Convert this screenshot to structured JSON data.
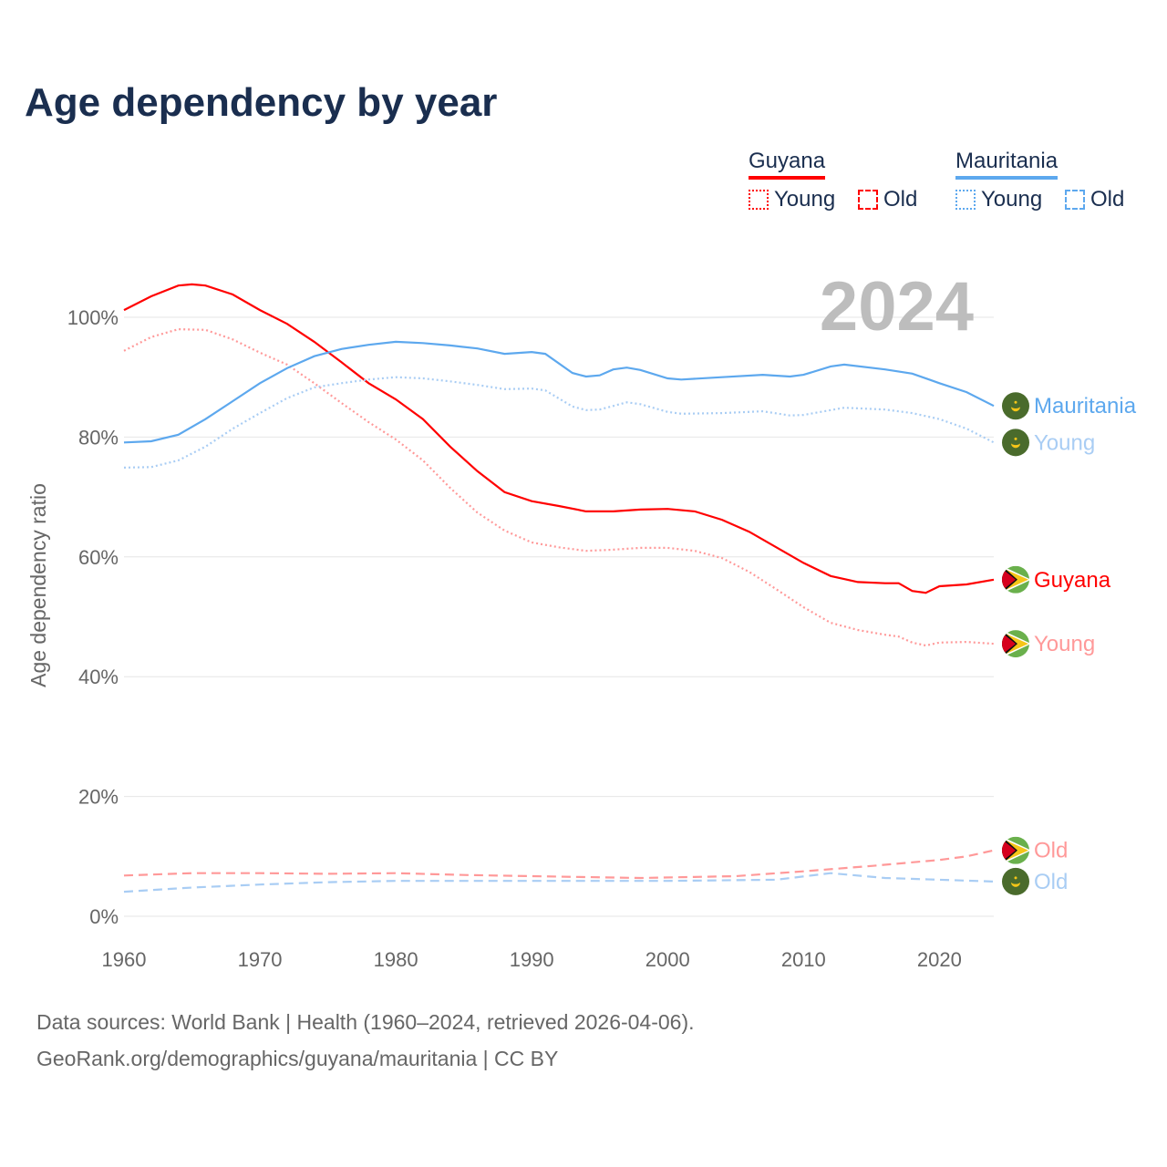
{
  "title": "Age dependency by year",
  "legend": {
    "countries": [
      {
        "name": "Guyana",
        "color": "#ff0000",
        "young_label": "Young",
        "old_label": "Old"
      },
      {
        "name": "Mauritania",
        "color": "#5da8ee",
        "young_label": "Young",
        "old_label": "Old"
      }
    ]
  },
  "year_overlay": "2024",
  "footer": {
    "line1": "Data sources: World Bank | Health (1960–2024, retrieved 2026-04-06).",
    "line2": "GeoRank.org/demographics/guyana/mauritania | CC BY"
  },
  "chart_data": {
    "type": "line",
    "title": "Age dependency by year",
    "xlabel": "",
    "ylabel": "Age dependency ratio",
    "xlim": [
      1960,
      2024
    ],
    "ylim": [
      0,
      110
    ],
    "x_ticks": [
      "1960",
      "1970",
      "1980",
      "1990",
      "2000",
      "2010",
      "2020"
    ],
    "y_ticks": [
      "0%",
      "20%",
      "40%",
      "60%",
      "80%",
      "100%"
    ],
    "grid": true,
    "legend_position": "top-right",
    "series": [
      {
        "name": "Guyana",
        "end_label": "Guyana",
        "country": "guyana",
        "style": "solid",
        "color": "#ff0000",
        "points": [
          [
            1960,
            101.2
          ],
          [
            1962,
            103.5
          ],
          [
            1964,
            105.3
          ],
          [
            1965,
            105.5
          ],
          [
            1966,
            105.3
          ],
          [
            1968,
            103.8
          ],
          [
            1970,
            101.2
          ],
          [
            1972,
            98.9
          ],
          [
            1974,
            95.9
          ],
          [
            1976,
            92.5
          ],
          [
            1978,
            89
          ],
          [
            1980,
            86.3
          ],
          [
            1982,
            83
          ],
          [
            1984,
            78.4
          ],
          [
            1986,
            74.3
          ],
          [
            1988,
            70.8
          ],
          [
            1990,
            69.3
          ],
          [
            1992,
            68.5
          ],
          [
            1994,
            67.6
          ],
          [
            1996,
            67.6
          ],
          [
            1998,
            67.9
          ],
          [
            2000,
            68
          ],
          [
            2002,
            67.6
          ],
          [
            2004,
            66.2
          ],
          [
            2006,
            64.2
          ],
          [
            2008,
            61.6
          ],
          [
            2010,
            59
          ],
          [
            2012,
            56.8
          ],
          [
            2014,
            55.8
          ],
          [
            2016,
            55.6
          ],
          [
            2017,
            55.6
          ],
          [
            2018,
            54.3
          ],
          [
            2019,
            54
          ],
          [
            2020,
            55.1
          ],
          [
            2022,
            55.4
          ],
          [
            2024,
            56.2
          ]
        ]
      },
      {
        "name": "Guyana Young",
        "end_label": "Young",
        "country": "guyana",
        "style": "dotted",
        "color": "#ff9999",
        "points": [
          [
            1960,
            94.4
          ],
          [
            1962,
            96.7
          ],
          [
            1964,
            98
          ],
          [
            1966,
            97.9
          ],
          [
            1968,
            96.3
          ],
          [
            1970,
            94.1
          ],
          [
            1972,
            92.1
          ],
          [
            1974,
            89
          ],
          [
            1976,
            85.7
          ],
          [
            1978,
            82.5
          ],
          [
            1980,
            79.6
          ],
          [
            1982,
            76.1
          ],
          [
            1984,
            71.5
          ],
          [
            1986,
            67.4
          ],
          [
            1988,
            64.4
          ],
          [
            1990,
            62.4
          ],
          [
            1992,
            61.6
          ],
          [
            1994,
            61
          ],
          [
            1996,
            61.2
          ],
          [
            1998,
            61.5
          ],
          [
            2000,
            61.5
          ],
          [
            2002,
            61
          ],
          [
            2004,
            59.8
          ],
          [
            2006,
            57.5
          ],
          [
            2008,
            54.6
          ],
          [
            2010,
            51.6
          ],
          [
            2012,
            49
          ],
          [
            2014,
            47.8
          ],
          [
            2016,
            47
          ],
          [
            2017,
            46.7
          ],
          [
            2018,
            45.7
          ],
          [
            2019,
            45.2
          ],
          [
            2020,
            45.7
          ],
          [
            2022,
            45.8
          ],
          [
            2024,
            45.5
          ]
        ]
      },
      {
        "name": "Guyana Old",
        "end_label": "Old",
        "country": "guyana",
        "style": "dashed",
        "color": "#ff9999",
        "points": [
          [
            1960,
            6.8
          ],
          [
            1965,
            7.2
          ],
          [
            1970,
            7.2
          ],
          [
            1975,
            7.1
          ],
          [
            1980,
            7.2
          ],
          [
            1985,
            6.9
          ],
          [
            1990,
            6.7
          ],
          [
            1998,
            6.4
          ],
          [
            2005,
            6.7
          ],
          [
            2010,
            7.5
          ],
          [
            2015,
            8.4
          ],
          [
            2020,
            9.4
          ],
          [
            2022,
            10
          ],
          [
            2024,
            11
          ]
        ]
      },
      {
        "name": "Mauritania",
        "end_label": "Mauritania",
        "country": "mauritania",
        "style": "solid",
        "color": "#5da8ee",
        "points": [
          [
            1960,
            79.1
          ],
          [
            1962,
            79.3
          ],
          [
            1964,
            80.4
          ],
          [
            1966,
            83
          ],
          [
            1968,
            86
          ],
          [
            1970,
            89
          ],
          [
            1972,
            91.5
          ],
          [
            1974,
            93.5
          ],
          [
            1976,
            94.7
          ],
          [
            1978,
            95.4
          ],
          [
            1980,
            95.9
          ],
          [
            1982,
            95.7
          ],
          [
            1984,
            95.3
          ],
          [
            1986,
            94.8
          ],
          [
            1988,
            93.9
          ],
          [
            1990,
            94.2
          ],
          [
            1991,
            93.9
          ],
          [
            1993,
            90.7
          ],
          [
            1994,
            90.1
          ],
          [
            1995,
            90.3
          ],
          [
            1996,
            91.3
          ],
          [
            1997,
            91.6
          ],
          [
            1998,
            91.2
          ],
          [
            2000,
            89.8
          ],
          [
            2001,
            89.6
          ],
          [
            2004,
            90
          ],
          [
            2007,
            90.4
          ],
          [
            2009,
            90.1
          ],
          [
            2010,
            90.4
          ],
          [
            2012,
            91.8
          ],
          [
            2013,
            92.1
          ],
          [
            2016,
            91.3
          ],
          [
            2018,
            90.6
          ],
          [
            2020,
            89
          ],
          [
            2022,
            87.5
          ],
          [
            2024,
            85.2
          ]
        ]
      },
      {
        "name": "Mauritania Young",
        "end_label": "Young",
        "country": "mauritania",
        "style": "dotted",
        "color": "#a9cdf4",
        "points": [
          [
            1960,
            74.9
          ],
          [
            1962,
            75
          ],
          [
            1964,
            76.1
          ],
          [
            1966,
            78.4
          ],
          [
            1968,
            81.4
          ],
          [
            1970,
            84
          ],
          [
            1972,
            86.5
          ],
          [
            1974,
            88.3
          ],
          [
            1976,
            89
          ],
          [
            1978,
            89.6
          ],
          [
            1980,
            90
          ],
          [
            1982,
            89.8
          ],
          [
            1984,
            89.3
          ],
          [
            1986,
            88.7
          ],
          [
            1988,
            88
          ],
          [
            1990,
            88.1
          ],
          [
            1991,
            87.8
          ],
          [
            1993,
            85.1
          ],
          [
            1994,
            84.5
          ],
          [
            1995,
            84.6
          ],
          [
            1997,
            85.8
          ],
          [
            1998,
            85.5
          ],
          [
            2000,
            84.2
          ],
          [
            2001,
            83.9
          ],
          [
            2004,
            84
          ],
          [
            2007,
            84.3
          ],
          [
            2009,
            83.6
          ],
          [
            2010,
            83.7
          ],
          [
            2013,
            84.9
          ],
          [
            2016,
            84.6
          ],
          [
            2018,
            84
          ],
          [
            2020,
            83
          ],
          [
            2022,
            81.4
          ],
          [
            2024,
            79.1
          ]
        ]
      },
      {
        "name": "Mauritania Old",
        "end_label": "Old",
        "country": "mauritania",
        "style": "dashed",
        "color": "#a9cdf4",
        "points": [
          [
            1960,
            4.1
          ],
          [
            1965,
            4.8
          ],
          [
            1970,
            5.3
          ],
          [
            1975,
            5.7
          ],
          [
            1980,
            5.9
          ],
          [
            1990,
            5.9
          ],
          [
            2000,
            5.9
          ],
          [
            2008,
            6.1
          ],
          [
            2012,
            7.2
          ],
          [
            2016,
            6.4
          ],
          [
            2020,
            6.1
          ],
          [
            2024,
            5.8
          ]
        ]
      }
    ]
  }
}
